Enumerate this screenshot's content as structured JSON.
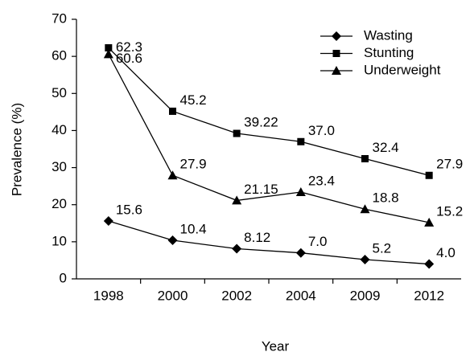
{
  "chart_data": {
    "type": "line",
    "xlabel": "Year",
    "ylabel": "Prevalence (%)",
    "categories": [
      "1998",
      "2000",
      "2002",
      "2004",
      "2009",
      "2012"
    ],
    "series": [
      {
        "name": "Wasting",
        "color": "#000000",
        "marker": "diamond",
        "values": [
          15.6,
          10.4,
          8.12,
          7.0,
          5.2,
          4.0
        ],
        "value_labels": [
          "15.6",
          "10.4",
          "8.12",
          "7.0",
          "5.2",
          "4.0"
        ]
      },
      {
        "name": "Stunting",
        "color": "#000000",
        "marker": "square",
        "values": [
          62.3,
          45.2,
          39.22,
          37.0,
          32.4,
          27.9
        ],
        "value_labels": [
          "62.3",
          "45.2",
          "39.22",
          "37.0",
          "32.4",
          "27.9"
        ]
      },
      {
        "name": "Underweight",
        "color": "#000000",
        "marker": "triangle",
        "values": [
          60.6,
          27.9,
          21.15,
          23.4,
          18.8,
          15.2
        ],
        "value_labels": [
          "60.6",
          "27.9",
          "21.15",
          "23.4",
          "18.8",
          "15.2"
        ]
      }
    ],
    "ylim": [
      0,
      70
    ],
    "yticks": [
      0,
      10,
      20,
      30,
      40,
      50,
      60,
      70
    ],
    "grid": false,
    "legend": "upper right"
  }
}
